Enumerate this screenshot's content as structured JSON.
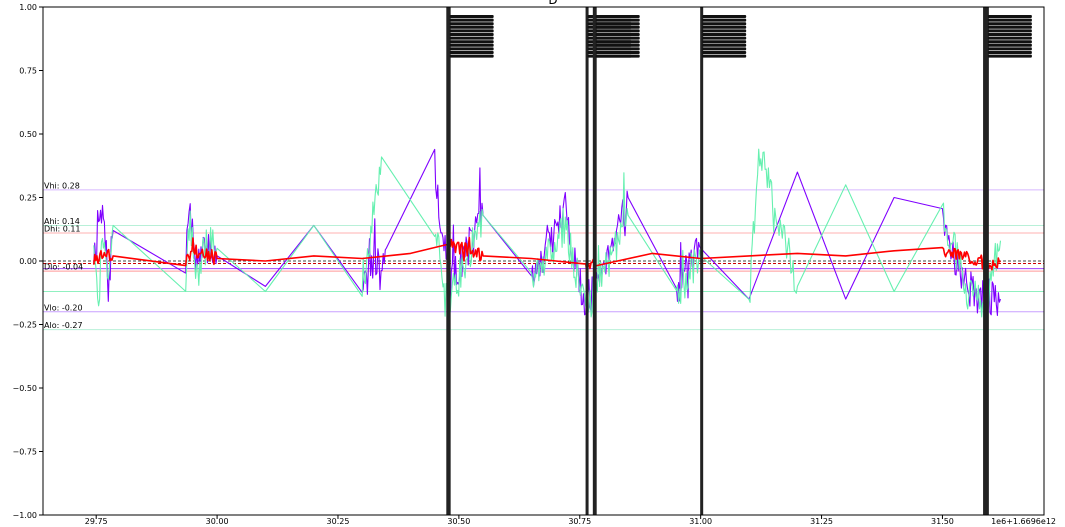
{
  "chart_data": {
    "type": "line",
    "title": "D",
    "xlabel": "",
    "ylabel": "",
    "x_offset_label": "1e6+1.6696e12",
    "xlim": [
      29.64,
      31.71
    ],
    "ylim": [
      -1.0,
      1.0
    ],
    "x_ticks": [
      29.75,
      30.0,
      30.25,
      30.5,
      30.75,
      31.0,
      31.25,
      31.5
    ],
    "x_tick_labels": [
      "29.75",
      "30.00",
      "30.25",
      "30.50",
      "30.75",
      "31.00",
      "31.25",
      "31.50"
    ],
    "y_ticks": [
      -1.0,
      -0.75,
      -0.5,
      -0.25,
      0.0,
      0.25,
      0.5,
      0.75,
      1.0
    ],
    "y_tick_labels": [
      "−1.00",
      "−0.75",
      "−0.50",
      "−0.25",
      "0.00",
      "0.25",
      "0.50",
      "0.75",
      "1.00"
    ],
    "grid": false,
    "colors": {
      "series_v": "#7f00ff",
      "series_a": "#66f0b0",
      "series_d": "#ff0000",
      "event_band": "#222222"
    },
    "threshold_lines": [
      {
        "label": "Vhi: 0.28",
        "value": 0.28,
        "color": "#d8b8ff"
      },
      {
        "label": "Ahi: 0.14",
        "value": 0.14,
        "color": "#b8f0d8"
      },
      {
        "label": "Dhi: 0.11",
        "value": 0.11,
        "color": "#ffb0b0"
      },
      {
        "label": "Dlo: -0.04",
        "value": -0.04,
        "color": "#ff9999"
      },
      {
        "label": "",
        "value": -0.03,
        "color": "#a040ff"
      },
      {
        "label": "",
        "value": -0.12,
        "color": "#90f0c0"
      },
      {
        "label": "Vlo: -0.20",
        "value": -0.2,
        "color": "#c8a0ff"
      },
      {
        "label": "Alo: -0.27",
        "value": -0.27,
        "color": "#b8f0d8"
      }
    ],
    "reference_lines": [
      {
        "value": 0.0,
        "color": "#444444"
      },
      {
        "value": -0.01,
        "color": "#cc0000"
      }
    ],
    "event_bands": [
      {
        "x_start": 30.474,
        "x_end": 30.483
      },
      {
        "x_start": 30.762,
        "x_end": 30.766
      },
      {
        "x_start": 30.777,
        "x_end": 30.785
      },
      {
        "x_start": 30.999,
        "x_end": 31.003
      },
      {
        "x_start": 31.584,
        "x_end": 31.596
      }
    ],
    "series": [
      {
        "name": "",
        "color": "#7f00ff",
        "key_x": [
          29.745,
          29.755,
          29.765,
          29.775,
          29.785,
          29.935,
          29.94,
          29.96,
          29.98,
          30.0,
          30.1,
          30.2,
          30.3,
          30.35,
          30.45,
          30.48,
          30.55,
          30.65,
          30.72,
          30.76,
          30.78,
          30.85,
          30.95,
          31.0,
          31.1,
          31.2,
          31.3,
          31.4,
          31.5,
          31.55,
          31.59,
          31.62
        ],
        "key_y": [
          0.03,
          0.15,
          0.17,
          -0.1,
          0.12,
          -0.02,
          0.2,
          -0.02,
          0.06,
          0.02,
          -0.1,
          0.14,
          -0.1,
          0.05,
          0.36,
          -0.1,
          0.18,
          -0.08,
          0.2,
          -0.18,
          -0.1,
          0.25,
          -0.12,
          0.05,
          -0.15,
          0.35,
          -0.15,
          0.25,
          0.15,
          -0.1,
          -0.16,
          -0.15
        ],
        "noise": 0.075,
        "seed": 7
      },
      {
        "name": "",
        "color": "#66f0b0",
        "key_x": [
          29.745,
          29.755,
          29.765,
          29.775,
          29.785,
          29.935,
          29.94,
          29.96,
          29.98,
          30.0,
          30.1,
          30.2,
          30.3,
          30.34,
          30.45,
          30.48,
          30.55,
          30.65,
          30.72,
          30.76,
          30.78,
          30.85,
          30.95,
          31.0,
          31.1,
          31.12,
          31.2,
          31.3,
          31.4,
          31.5,
          31.55,
          31.59,
          31.62
        ],
        "key_y": [
          0.1,
          -0.15,
          0.12,
          -0.1,
          0.14,
          -0.16,
          0.18,
          -0.05,
          0.08,
          0.05,
          -0.12,
          0.14,
          -0.12,
          0.41,
          0.1,
          -0.16,
          0.18,
          -0.1,
          0.15,
          -0.2,
          -0.12,
          0.18,
          -0.12,
          0.02,
          -0.18,
          0.45,
          -0.1,
          0.3,
          -0.12,
          0.2,
          -0.12,
          -0.18,
          0.08
        ],
        "noise": 0.075,
        "seed": 21
      },
      {
        "name": "",
        "color": "#ff0000",
        "key_x": [
          29.745,
          29.76,
          29.785,
          29.935,
          29.95,
          30.0,
          30.1,
          30.2,
          30.3,
          30.4,
          30.48,
          30.55,
          30.65,
          30.76,
          30.78,
          30.9,
          31.0,
          31.1,
          31.2,
          31.3,
          31.4,
          31.5,
          31.55,
          31.6,
          31.62
        ],
        "key_y": [
          0.0,
          0.03,
          0.02,
          0.0,
          0.04,
          0.01,
          0.0,
          0.02,
          0.01,
          0.03,
          0.07,
          0.02,
          0.01,
          -0.03,
          -0.02,
          0.03,
          0.01,
          0.02,
          0.03,
          0.02,
          0.04,
          0.03,
          0.02,
          -0.02,
          0.0
        ],
        "noise": 0.028,
        "seed": 3
      }
    ]
  }
}
